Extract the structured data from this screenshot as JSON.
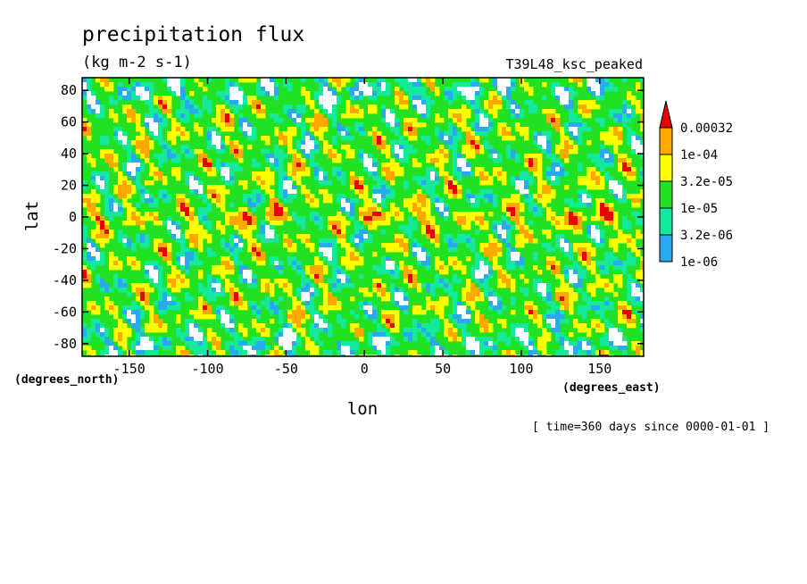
{
  "chart_data": {
    "type": "heatmap",
    "title": "precipitation flux",
    "units": "(kg m-2 s-1)",
    "run_label": "T39L48_ksc_peaked",
    "xlabel": "lon",
    "ylabel": "lat",
    "x_units": "(degrees_east)",
    "y_units": "(degrees_north)",
    "xlim": [
      -180,
      178
    ],
    "ylim": [
      -88,
      88
    ],
    "x_ticks": [
      -150,
      -100,
      -50,
      0,
      50,
      100,
      150
    ],
    "y_ticks": [
      -80,
      -60,
      -40,
      -20,
      0,
      20,
      40,
      60,
      80
    ],
    "x_tick_labels": [
      "-150",
      "-100",
      "-50",
      "0",
      "50",
      "100",
      "150"
    ],
    "y_tick_labels": [
      "-80",
      "-60",
      "-40",
      "-20",
      "0",
      "20",
      "40",
      "60",
      "80"
    ],
    "time_note": "[ time=360 days since 0000-01-01 ]",
    "legend": {
      "placement": "right",
      "levels": [
        1e-06,
        3.2e-06,
        1e-05,
        3.2e-05,
        0.0001,
        0.00032
      ],
      "labels": [
        "1e-06",
        "3.2e-06",
        "1e-05",
        "3.2e-05",
        "1e-04",
        "0.00032"
      ],
      "colors": [
        "#ffffff",
        "#2aa8f0",
        "#14e89c",
        "#22e022",
        "#ffff00",
        "#ffa800",
        "#e80000"
      ]
    },
    "grid": false
  }
}
